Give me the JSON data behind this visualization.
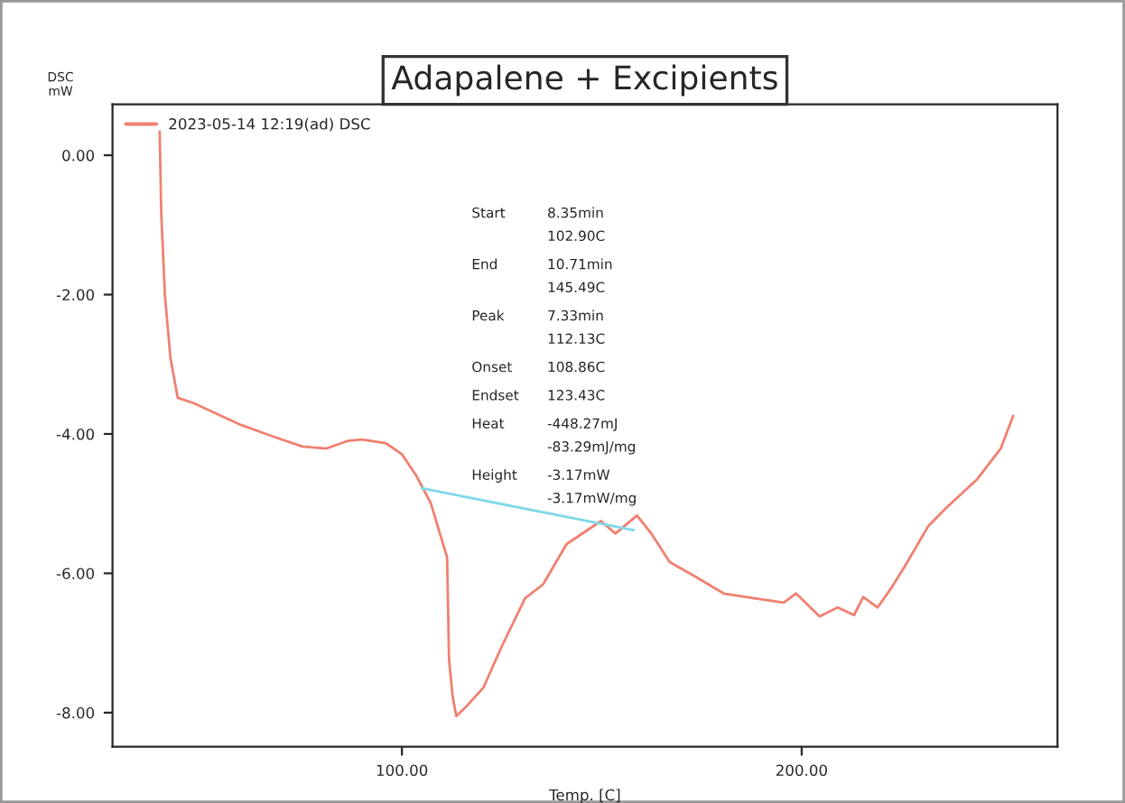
{
  "chart_data": {
    "type": "line",
    "title": "Adapalene + Excipients",
    "xlabel": "Temp. [C]",
    "ylabel": "DSC\nmW",
    "xlim": [
      27.6,
      264
    ],
    "xticks": [
      {
        "value": 100,
        "label": "100.00"
      },
      {
        "value": 200,
        "label": "200.00"
      }
    ],
    "ylim": [
      -8.49,
      0.73
    ],
    "yticks": [
      {
        "value": 0,
        "label": "0.00"
      },
      {
        "value": -2,
        "label": "-2.00"
      },
      {
        "value": -4,
        "label": "-4.00"
      },
      {
        "value": -6,
        "label": "-6.00"
      },
      {
        "value": -8,
        "label": "-8.00"
      }
    ],
    "grid": false,
    "legend": "top left",
    "marker": "none",
    "line_style": "solid",
    "series": [
      {
        "name": "2023-05-14 12:19(ad) DSC",
        "color": "#f08070",
        "x": [
          39.4,
          39.8,
          40.7,
          42.1,
          43.9,
          48.0,
          59.7,
          67.4,
          75.1,
          81.0,
          86.4,
          90.0,
          95.9,
          100.0,
          103.6,
          107.2,
          109.5,
          111.3,
          111.8,
          112.7,
          113.6,
          116.3,
          120.4,
          124.9,
          130.8,
          135.3,
          141.2,
          149.8,
          153.4,
          158.8,
          162.4,
          167.0,
          172.9,
          180.5,
          188.2,
          195.5,
          198.6,
          204.5,
          209.0,
          213.1,
          215.4,
          219.0,
          222.2,
          225.8,
          231.7,
          236.2,
          243.9,
          249.8,
          252.9
        ],
        "values": [
          0.34,
          -0.83,
          -2.0,
          -2.91,
          -3.48,
          -3.56,
          -3.87,
          -4.03,
          -4.18,
          -4.21,
          -4.1,
          -4.08,
          -4.13,
          -4.29,
          -4.6,
          -4.99,
          -5.43,
          -5.77,
          -7.25,
          -7.77,
          -8.05,
          -7.9,
          -7.64,
          -7.06,
          -6.36,
          -6.16,
          -5.58,
          -5.25,
          -5.43,
          -5.17,
          -5.43,
          -5.84,
          -6.03,
          -6.29,
          -6.36,
          -6.42,
          -6.29,
          -6.62,
          -6.49,
          -6.6,
          -6.34,
          -6.49,
          -6.23,
          -5.9,
          -5.32,
          -5.06,
          -4.65,
          -4.21,
          -3.74
        ]
      },
      {
        "type": "line",
        "color": "#80d8e8",
        "x": [
          105,
          158
        ],
        "values": [
          -4.78,
          -5.38
        ]
      }
    ],
    "annotations": [
      "Start\t8.35min\n\t102.90C",
      "End\t10.71min\n\t145.49C",
      "Peak\t7.33min\n\t112.13C",
      "Onset\t108.86C",
      "Endset\t123.43C",
      "Heat\t-448.27mJ\n\t-83.29mJ/mg",
      "Height\t-3.17mW\n\t-3.17mW/mg"
    ]
  }
}
